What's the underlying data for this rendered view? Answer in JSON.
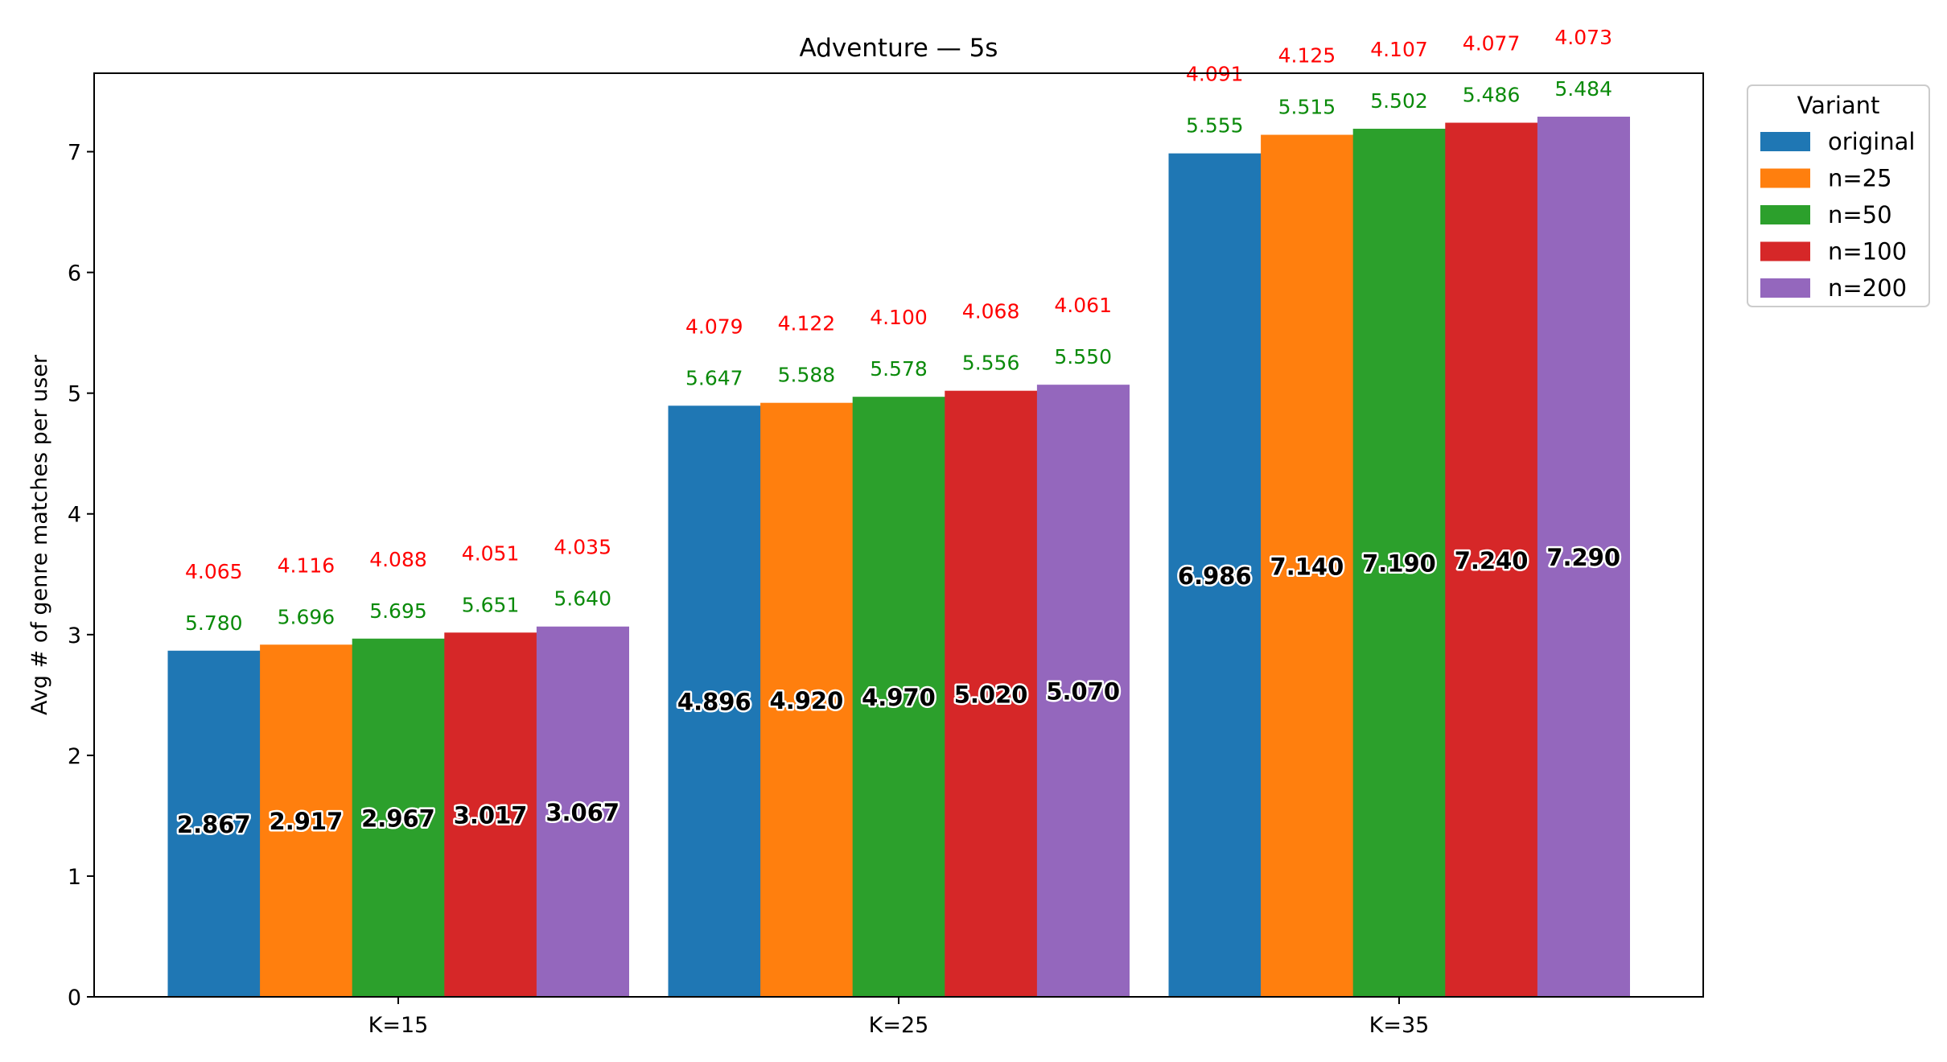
{
  "chart_data": {
    "type": "bar",
    "title": "Adventure — 5s",
    "xlabel": "",
    "ylabel": "Avg # of genre matches per user",
    "categories": [
      "K=15",
      "K=25",
      "K=35"
    ],
    "ylim": [
      0,
      7.65
    ],
    "yticks": [
      "0",
      "1",
      "2",
      "3",
      "4",
      "5",
      "6",
      "7"
    ],
    "grid": false,
    "legend": {
      "title": "Variant",
      "position": "outside top-right"
    },
    "series": [
      {
        "name": "original",
        "color": "#1f77b4",
        "values": [
          2.867,
          4.896,
          6.986
        ],
        "labels": [
          "2.867",
          "4.896",
          "6.986"
        ],
        "green_labels": [
          "5.780",
          "5.647",
          "5.555"
        ],
        "red_labels": [
          "4.065",
          "4.079",
          "4.091"
        ]
      },
      {
        "name": "n=25",
        "color": "#ff7f0e",
        "values": [
          2.917,
          4.92,
          7.14
        ],
        "labels": [
          "2.917",
          "4.920",
          "7.140"
        ],
        "green_labels": [
          "5.696",
          "5.588",
          "5.515"
        ],
        "red_labels": [
          "4.116",
          "4.122",
          "4.125"
        ]
      },
      {
        "name": "n=50",
        "color": "#2ca02c",
        "values": [
          2.967,
          4.97,
          7.19
        ],
        "labels": [
          "2.967",
          "4.970",
          "7.190"
        ],
        "green_labels": [
          "5.695",
          "5.578",
          "5.502"
        ],
        "red_labels": [
          "4.088",
          "4.100",
          "4.107"
        ]
      },
      {
        "name": "n=100",
        "color": "#d62728",
        "values": [
          3.017,
          5.02,
          7.24
        ],
        "labels": [
          "3.017",
          "5.020",
          "7.240"
        ],
        "green_labels": [
          "5.651",
          "5.556",
          "5.486"
        ],
        "red_labels": [
          "4.051",
          "4.068",
          "4.077"
        ]
      },
      {
        "name": "n=200",
        "color": "#9467bd",
        "values": [
          3.067,
          5.07,
          7.29
        ],
        "labels": [
          "3.067",
          "5.070",
          "7.290"
        ],
        "green_labels": [
          "5.640",
          "5.550",
          "5.484"
        ],
        "red_labels": [
          "4.035",
          "4.061",
          "4.073"
        ]
      }
    ],
    "annotation_colors": {
      "green": "#0a8a0a",
      "red": "#ff0000"
    }
  }
}
